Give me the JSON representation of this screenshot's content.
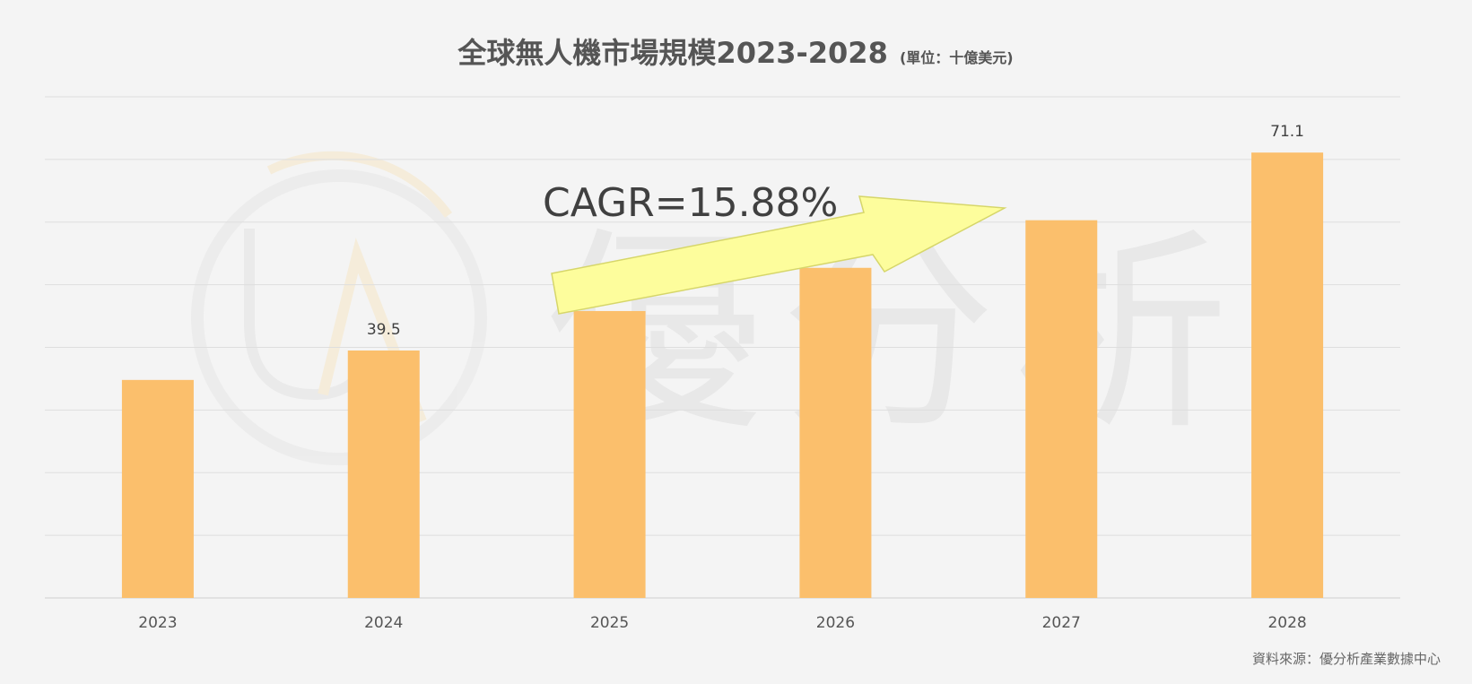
{
  "chart_data": {
    "type": "bar",
    "title": "全球無人機市場規模2023-2028",
    "unit_note": "(單位：十億美元)",
    "categories": [
      "2023",
      "2024",
      "2025",
      "2026",
      "2027",
      "2028"
    ],
    "values": [
      34.8,
      39.5,
      45.8,
      52.7,
      60.3,
      71.1
    ],
    "data_labels": [
      "",
      "39.5",
      "",
      "",
      "",
      "71.1"
    ],
    "ylim": [
      0,
      80
    ],
    "grid": true,
    "bar_color": "#fbbf6c",
    "annotation": "CAGR=15.88%",
    "arrow_color": "#fdfd9c",
    "source": "資料來源：優分析產業數據中心",
    "watermark": "優分析"
  }
}
